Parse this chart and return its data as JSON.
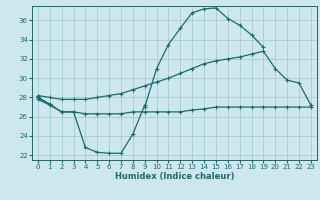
{
  "xlabel": "Humidex (Indice chaleur)",
  "bg_color": "#cce8ee",
  "grid_color": "#aacccc",
  "line_color": "#1a6b6b",
  "xlim": [
    -0.5,
    23.5
  ],
  "ylim": [
    21.5,
    37.5
  ],
  "xticks": [
    0,
    1,
    2,
    3,
    4,
    5,
    6,
    7,
    8,
    9,
    10,
    11,
    12,
    13,
    14,
    15,
    16,
    17,
    18,
    19,
    20,
    21,
    22,
    23
  ],
  "yticks": [
    22,
    24,
    26,
    28,
    30,
    32,
    34,
    36
  ],
  "series": [
    {
      "x": [
        0,
        1,
        2,
        3,
        4,
        5,
        6,
        7,
        8,
        9,
        10,
        11,
        12,
        13,
        14,
        15,
        16,
        17,
        18,
        19,
        20,
        21,
        22,
        23
      ],
      "y": [
        28.0,
        27.3,
        null,
        null,
        null,
        null,
        null,
        null,
        null,
        27.0,
        31.0,
        33.5,
        35.2,
        36.8,
        37.2,
        37.3,
        36.2,
        35.5,
        34.5,
        33.2,
        null,
        null,
        null,
        null
      ]
    },
    {
      "x": [
        0,
        1,
        2,
        3,
        4,
        5,
        6,
        7,
        8,
        9,
        10,
        11,
        12,
        13,
        14,
        15,
        16,
        17,
        18,
        19,
        20,
        21,
        22,
        23
      ],
      "y": [
        28.2,
        28.0,
        27.8,
        27.8,
        27.8,
        28.0,
        28.2,
        28.4,
        28.8,
        29.2,
        29.6,
        30.0,
        30.5,
        31.0,
        31.5,
        31.8,
        32.0,
        32.2,
        32.5,
        32.8,
        31.0,
        29.8,
        29.5,
        27.2
      ]
    },
    {
      "x": [
        0,
        1,
        2,
        3,
        4,
        5,
        6,
        7,
        8,
        9,
        10,
        11,
        12,
        13,
        14,
        15,
        16,
        17,
        18,
        19,
        20,
        21,
        22,
        23
      ],
      "y": [
        27.8,
        27.2,
        26.5,
        26.5,
        26.3,
        26.3,
        26.3,
        26.3,
        26.5,
        26.5,
        26.5,
        26.5,
        26.5,
        26.7,
        26.8,
        27.0,
        27.0,
        27.0,
        27.0,
        27.0,
        27.0,
        27.0,
        27.0,
        27.0
      ]
    },
    {
      "x": [
        0,
        1,
        2,
        3,
        4,
        5,
        6,
        7,
        8,
        9,
        10,
        11,
        12,
        13,
        14,
        15,
        16,
        17,
        18,
        19,
        20,
        21,
        22,
        23
      ],
      "y": [
        28.0,
        27.3,
        26.5,
        26.5,
        22.8,
        22.3,
        22.2,
        22.2,
        24.2,
        27.2,
        null,
        null,
        null,
        null,
        null,
        null,
        null,
        null,
        null,
        null,
        null,
        null,
        null,
        null
      ]
    }
  ]
}
